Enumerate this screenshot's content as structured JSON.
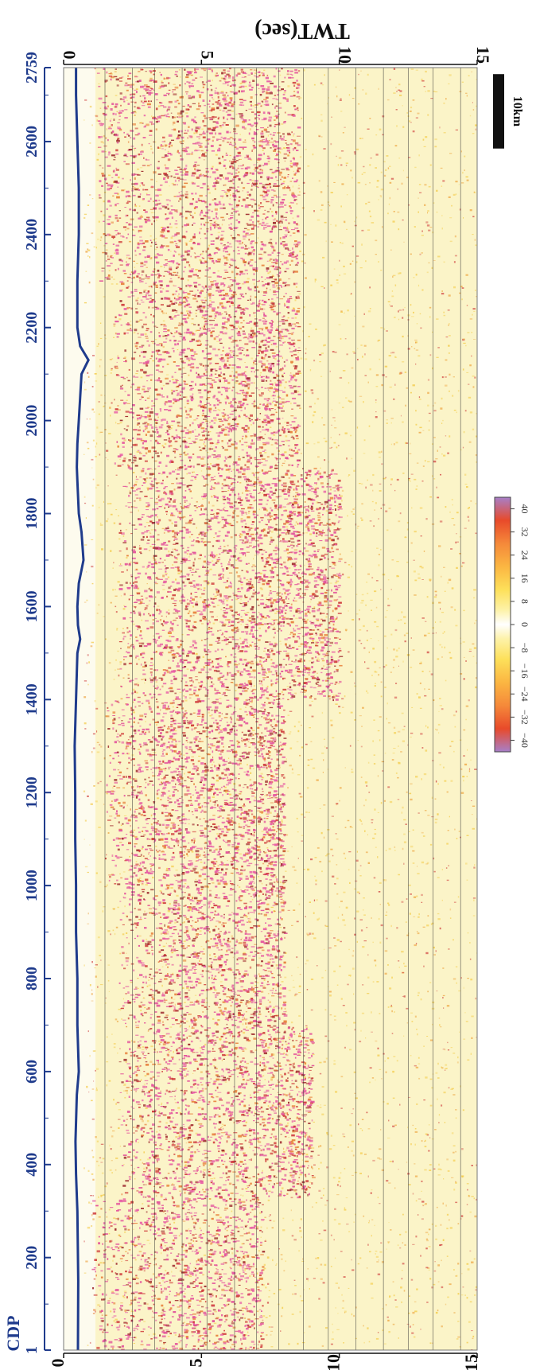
{
  "chart_data": {
    "type": "heatmap",
    "orientation": "rotated 90 degrees; CDP increases toward the top, TWT increases to the right",
    "x_axis": {
      "label": "CDP",
      "range": [
        1,
        2759
      ],
      "ticks": [
        1,
        200,
        400,
        600,
        800,
        1000,
        1200,
        1400,
        1600,
        1800,
        2000,
        2200,
        2400,
        2600,
        2759
      ],
      "color": "#1f3b8c"
    },
    "y_axis": {
      "label": "TWT(sec)",
      "range": [
        0,
        15
      ],
      "ticks": [
        0,
        5,
        10,
        15
      ],
      "color": "#111111"
    },
    "seafloor_twt": [
      [
        1,
        0.52
      ],
      [
        150,
        0.53
      ],
      [
        300,
        0.5
      ],
      [
        380,
        0.45
      ],
      [
        450,
        0.43
      ],
      [
        550,
        0.48
      ],
      [
        600,
        0.55
      ],
      [
        700,
        0.5
      ],
      [
        800,
        0.5
      ],
      [
        900,
        0.45
      ],
      [
        1000,
        0.45
      ],
      [
        1100,
        0.42
      ],
      [
        1200,
        0.42
      ],
      [
        1300,
        0.4
      ],
      [
        1400,
        0.45
      ],
      [
        1500,
        0.5
      ],
      [
        1530,
        0.6
      ],
      [
        1560,
        0.52
      ],
      [
        1600,
        0.5
      ],
      [
        1650,
        0.55
      ],
      [
        1700,
        0.72
      ],
      [
        1760,
        0.65
      ],
      [
        1800,
        0.55
      ],
      [
        1870,
        0.5
      ],
      [
        1900,
        0.48
      ],
      [
        1950,
        0.5
      ],
      [
        2000,
        0.55
      ],
      [
        2050,
        0.6
      ],
      [
        2100,
        0.65
      ],
      [
        2130,
        0.9
      ],
      [
        2160,
        0.6
      ],
      [
        2200,
        0.5
      ],
      [
        2300,
        0.5
      ],
      [
        2400,
        0.55
      ],
      [
        2500,
        0.55
      ],
      [
        2600,
        0.5
      ],
      [
        2700,
        0.45
      ],
      [
        2759,
        0.45
      ]
    ],
    "horizon_twt": [
      1.5,
      2.5,
      3.3,
      4.3,
      5.2,
      6.2,
      7.0,
      7.8,
      8.7,
      9.6,
      10.6,
      11.6,
      12.5,
      13.4,
      14.4
    ],
    "amplitude_zones": [
      {
        "cdp_start": 1,
        "cdp_end": 330,
        "twt_start": 1.0,
        "twt_end": 7.2,
        "intensity": 0.55
      },
      {
        "cdp_start": 330,
        "cdp_end": 700,
        "twt_start": 2.0,
        "twt_end": 9.0,
        "intensity": 0.7
      },
      {
        "cdp_start": 700,
        "cdp_end": 1000,
        "twt_start": 2.0,
        "twt_end": 8.0,
        "intensity": 0.6
      },
      {
        "cdp_start": 1000,
        "cdp_end": 1400,
        "twt_start": 1.5,
        "twt_end": 8.0,
        "intensity": 0.75
      },
      {
        "cdp_start": 1400,
        "cdp_end": 1900,
        "twt_start": 2.0,
        "twt_end": 10.0,
        "intensity": 0.85
      },
      {
        "cdp_start": 1900,
        "cdp_end": 2300,
        "twt_start": 1.8,
        "twt_end": 8.5,
        "intensity": 0.7
      },
      {
        "cdp_start": 2300,
        "cdp_end": 2759,
        "twt_start": 1.2,
        "twt_end": 8.5,
        "intensity": 0.65
      }
    ],
    "colorbar": {
      "ticks": [
        -40,
        -32,
        -24,
        -16,
        -8,
        0,
        8,
        16,
        24,
        32,
        40
      ],
      "range": [
        -44,
        44
      ],
      "colors": [
        {
          "value": -44,
          "color": "#a77fc9"
        },
        {
          "value": -36,
          "color": "#e84a2a"
        },
        {
          "value": -28,
          "color": "#f5893a"
        },
        {
          "value": -20,
          "color": "#fbb642"
        },
        {
          "value": -12,
          "color": "#fde05a"
        },
        {
          "value": -5,
          "color": "#fdf2a8"
        },
        {
          "value": 0,
          "color": "#ffffff"
        },
        {
          "value": 5,
          "color": "#fdf2a8"
        },
        {
          "value": 12,
          "color": "#fde05a"
        },
        {
          "value": 20,
          "color": "#fbb642"
        },
        {
          "value": 28,
          "color": "#f5893a"
        },
        {
          "value": 36,
          "color": "#e84a2a"
        },
        {
          "value": 44,
          "color": "#a77fc9"
        }
      ]
    },
    "scale_bar": {
      "label": "10km",
      "length_cdp": 160
    }
  }
}
